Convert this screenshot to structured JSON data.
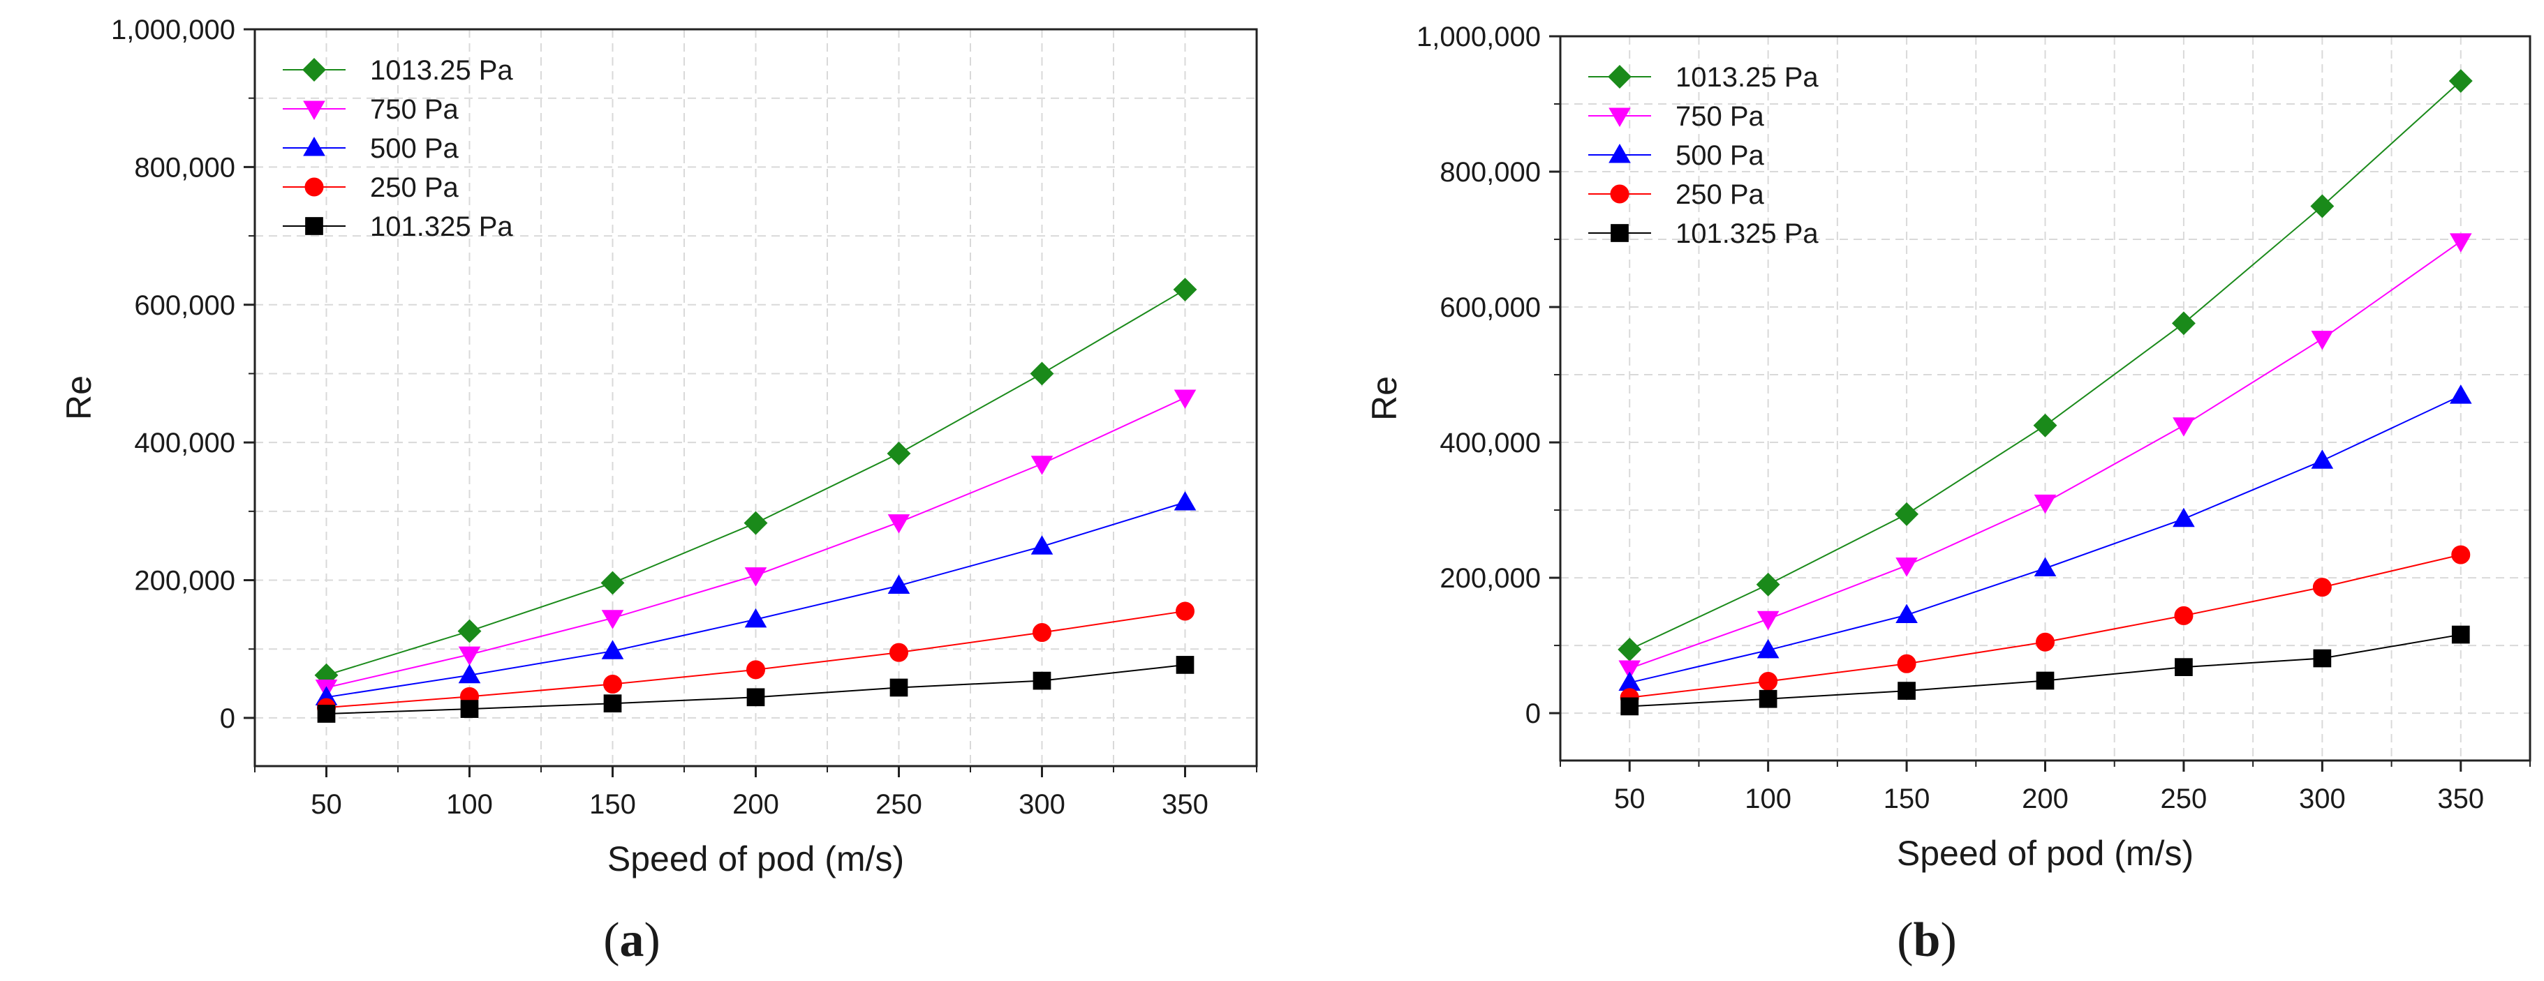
{
  "figure": {
    "panels": [
      "a",
      "b"
    ]
  },
  "chart_data": [
    {
      "type": "line",
      "panel_label": "a",
      "title": "",
      "xlabel": "Speed of pod (m/s)",
      "ylabel": "Re",
      "x": [
        50,
        100,
        150,
        200,
        250,
        300,
        350
      ],
      "x_ticks": [
        "50",
        "100",
        "150",
        "200",
        "250",
        "300",
        "350"
      ],
      "xlim": [
        25,
        375
      ],
      "ylim": [
        -70000,
        1000000
      ],
      "y_ticks": [
        0,
        200000,
        400000,
        600000,
        800000,
        1000000
      ],
      "y_tick_labels": [
        "0",
        "200,000",
        "400,000",
        "600,000",
        "800,000",
        "1,000,000"
      ],
      "grid": true,
      "legend_position": "top-left",
      "series": [
        {
          "name": "1013.25 Pa",
          "color": "#1a8a1a",
          "marker": "diamond",
          "values": [
            62000,
            126000,
            196000,
            283000,
            384000,
            500000,
            622000
          ]
        },
        {
          "name": "750 Pa",
          "color": "#ff00ff",
          "marker": "triangle-down",
          "values": [
            44000,
            92000,
            145000,
            207000,
            284000,
            369000,
            465000
          ]
        },
        {
          "name": "500 Pa",
          "color": "#0000ff",
          "marker": "triangle-up",
          "values": [
            30000,
            62000,
            97000,
            143000,
            192000,
            249000,
            313000
          ]
        },
        {
          "name": "250 Pa",
          "color": "#ff0000",
          "marker": "circle",
          "values": [
            15000,
            31000,
            49000,
            70000,
            95000,
            124000,
            155000
          ]
        },
        {
          "name": "101.325 Pa",
          "color": "#000000",
          "marker": "square",
          "values": [
            6000,
            13000,
            21000,
            30000,
            44000,
            54000,
            77000
          ]
        }
      ]
    },
    {
      "type": "line",
      "panel_label": "b",
      "title": "",
      "xlabel": "Speed of pod (m/s)",
      "ylabel": "Re",
      "x": [
        50,
        100,
        150,
        200,
        250,
        300,
        350
      ],
      "x_ticks": [
        "50",
        "100",
        "150",
        "200",
        "250",
        "300",
        "350"
      ],
      "xlim": [
        25,
        375
      ],
      "ylim": [
        -70000,
        1000000
      ],
      "y_ticks": [
        0,
        200000,
        400000,
        600000,
        800000,
        1000000
      ],
      "y_tick_labels": [
        "0",
        "200,000",
        "400,000",
        "600,000",
        "800,000",
        "1,000,000"
      ],
      "grid": true,
      "legend_position": "top-left",
      "series": [
        {
          "name": "1013.25 Pa",
          "color": "#1a8a1a",
          "marker": "diamond",
          "values": [
            94000,
            190000,
            294000,
            425000,
            576000,
            749000,
            934000
          ]
        },
        {
          "name": "750 Pa",
          "color": "#ff00ff",
          "marker": "triangle-down",
          "values": [
            66000,
            139000,
            218000,
            311000,
            425000,
            553000,
            697000
          ]
        },
        {
          "name": "500 Pa",
          "color": "#0000ff",
          "marker": "triangle-up",
          "values": [
            45000,
            93000,
            145000,
            214000,
            287000,
            373000,
            469000
          ]
        },
        {
          "name": "250 Pa",
          "color": "#ff0000",
          "marker": "circle",
          "values": [
            23000,
            47000,
            73000,
            105000,
            144000,
            186000,
            234000
          ]
        },
        {
          "name": "101.325 Pa",
          "color": "#000000",
          "marker": "square",
          "values": [
            10000,
            21000,
            33000,
            48000,
            68000,
            81000,
            116000
          ]
        }
      ]
    }
  ]
}
